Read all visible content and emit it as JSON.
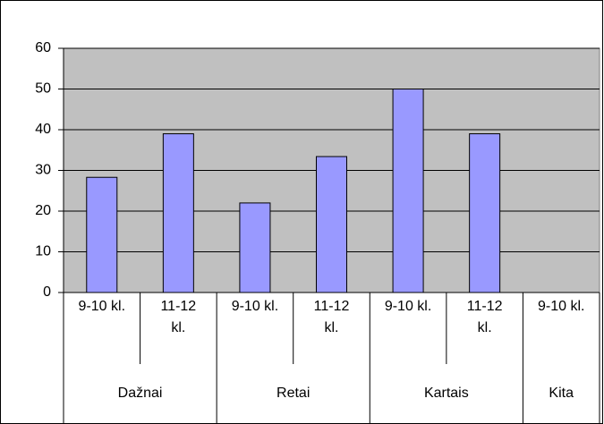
{
  "chart_data": {
    "type": "bar",
    "groups": [
      {
        "name": "Dažnai",
        "categories": [
          "9-10 kl.",
          "11-12 kl."
        ],
        "values": [
          28.3,
          39
        ]
      },
      {
        "name": "Retai",
        "categories": [
          "9-10 kl.",
          "11-12 kl."
        ],
        "values": [
          22,
          33.4
        ]
      },
      {
        "name": "Kartais",
        "categories": [
          "9-10 kl.",
          "11-12 kl."
        ],
        "values": [
          50,
          39
        ]
      },
      {
        "name": "Kita",
        "categories": [
          "9-10 kl."
        ],
        "values": [
          null
        ]
      }
    ],
    "color": "#9999ff",
    "background": "#c0c0c0",
    "ylim": [
      0,
      60
    ],
    "yticks": [
      0,
      10,
      20,
      30,
      40,
      50,
      60
    ],
    "grid": true
  }
}
